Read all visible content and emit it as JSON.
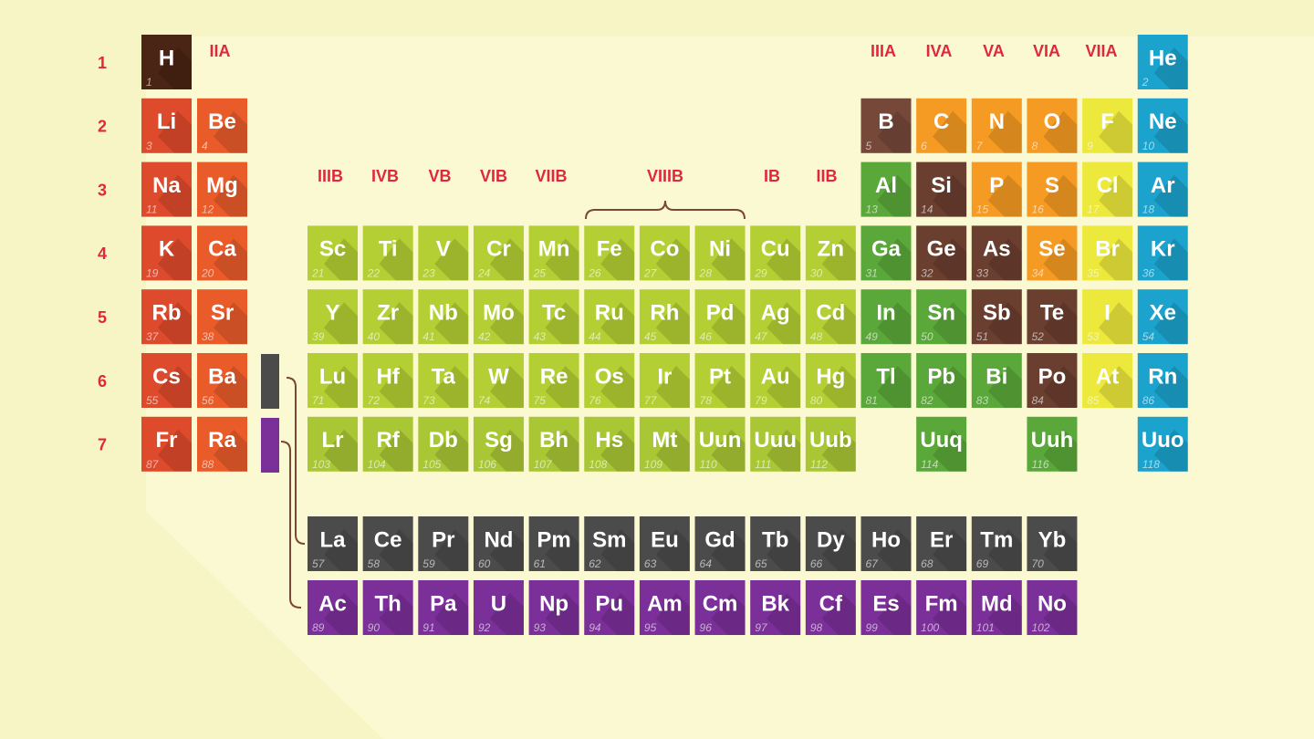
{
  "periods": [
    "1",
    "2",
    "3",
    "4",
    "5",
    "6",
    "7"
  ],
  "groups_a": [
    "IIA",
    "IIIA",
    "IVA",
    "VA",
    "VIA",
    "VIIA"
  ],
  "groups_b": [
    "IIIB",
    "IVB",
    "VB",
    "VIB",
    "VIIB",
    "VIIIB",
    "IB",
    "IIB"
  ],
  "rows": [
    [
      {
        "symbol": "H",
        "number": 1,
        "color": "#4a2414"
      },
      null,
      null,
      null,
      null,
      null,
      null,
      null,
      null,
      null,
      null,
      null,
      null,
      null,
      null,
      null,
      null,
      {
        "symbol": "He",
        "number": 2,
        "color": "#1ba3cd"
      }
    ],
    [
      {
        "symbol": "Li",
        "number": 3,
        "color": "#de4a2c"
      },
      {
        "symbol": "Be",
        "number": 4,
        "color": "#ea5b2a"
      },
      null,
      null,
      null,
      null,
      null,
      null,
      null,
      null,
      null,
      null,
      {
        "symbol": "B",
        "number": 5,
        "color": "#76483a"
      },
      {
        "symbol": "C",
        "number": 6,
        "color": "#f59a22"
      },
      {
        "symbol": "N",
        "number": 7,
        "color": "#f59a22"
      },
      {
        "symbol": "O",
        "number": 8,
        "color": "#f59a22"
      },
      {
        "symbol": "F",
        "number": 9,
        "color": "#ece83c"
      },
      {
        "symbol": "Ne",
        "number": 10,
        "color": "#1ba3cd"
      }
    ],
    [
      {
        "symbol": "Na",
        "number": 11,
        "color": "#de4a2c"
      },
      {
        "symbol": "Mg",
        "number": 12,
        "color": "#ea5b2a"
      },
      null,
      null,
      null,
      null,
      null,
      null,
      null,
      null,
      null,
      null,
      {
        "symbol": "Al",
        "number": 13,
        "color": "#5ba83a"
      },
      {
        "symbol": "Si",
        "number": 14,
        "color": "#6b3f30"
      },
      {
        "symbol": "P",
        "number": 15,
        "color": "#f59a22"
      },
      {
        "symbol": "S",
        "number": 16,
        "color": "#f59a22"
      },
      {
        "symbol": "Cl",
        "number": 17,
        "color": "#ece83c"
      },
      {
        "symbol": "Ar",
        "number": 18,
        "color": "#1ba3cd"
      }
    ],
    [
      {
        "symbol": "K",
        "number": 19,
        "color": "#de4a2c"
      },
      {
        "symbol": "Ca",
        "number": 20,
        "color": "#ea5b2a"
      },
      {
        "symbol": "Sc",
        "number": 21,
        "color": "#b3cf33"
      },
      {
        "symbol": "Ti",
        "number": 22,
        "color": "#b3cf33"
      },
      {
        "symbol": "V",
        "number": 23,
        "color": "#b3cf33"
      },
      {
        "symbol": "Cr",
        "number": 24,
        "color": "#b3cf33"
      },
      {
        "symbol": "Mn",
        "number": 25,
        "color": "#b3cf33"
      },
      {
        "symbol": "Fe",
        "number": 26,
        "color": "#b3cf33"
      },
      {
        "symbol": "Co",
        "number": 27,
        "color": "#b3cf33"
      },
      {
        "symbol": "Ni",
        "number": 28,
        "color": "#b3cf33"
      },
      {
        "symbol": "Cu",
        "number": 29,
        "color": "#b3cf33"
      },
      {
        "symbol": "Zn",
        "number": 30,
        "color": "#b3cf33"
      },
      {
        "symbol": "Ga",
        "number": 31,
        "color": "#5ba83a"
      },
      {
        "symbol": "Ge",
        "number": 32,
        "color": "#6b3f30"
      },
      {
        "symbol": "As",
        "number": 33,
        "color": "#6b3f30"
      },
      {
        "symbol": "Se",
        "number": 34,
        "color": "#f59a22"
      },
      {
        "symbol": "Br",
        "number": 35,
        "color": "#ece83c"
      },
      {
        "symbol": "Kr",
        "number": 36,
        "color": "#1ba3cd"
      }
    ],
    [
      {
        "symbol": "Rb",
        "number": 37,
        "color": "#de4a2c"
      },
      {
        "symbol": "Sr",
        "number": 38,
        "color": "#ea5b2a"
      },
      {
        "symbol": "Y",
        "number": 39,
        "color": "#b3cf33"
      },
      {
        "symbol": "Zr",
        "number": 40,
        "color": "#b3cf33"
      },
      {
        "symbol": "Nb",
        "number": 41,
        "color": "#b3cf33"
      },
      {
        "symbol": "Mo",
        "number": 42,
        "color": "#b3cf33"
      },
      {
        "symbol": "Tc",
        "number": 43,
        "color": "#b3cf33"
      },
      {
        "symbol": "Ru",
        "number": 44,
        "color": "#b3cf33"
      },
      {
        "symbol": "Rh",
        "number": 45,
        "color": "#b3cf33"
      },
      {
        "symbol": "Pd",
        "number": 46,
        "color": "#b3cf33"
      },
      {
        "symbol": "Ag",
        "number": 47,
        "color": "#b3cf33"
      },
      {
        "symbol": "Cd",
        "number": 48,
        "color": "#b3cf33"
      },
      {
        "symbol": "In",
        "number": 49,
        "color": "#5ba83a"
      },
      {
        "symbol": "Sn",
        "number": 50,
        "color": "#5ba83a"
      },
      {
        "symbol": "Sb",
        "number": 51,
        "color": "#6b3f30"
      },
      {
        "symbol": "Te",
        "number": 52,
        "color": "#6b3f30"
      },
      {
        "symbol": "I",
        "number": 53,
        "color": "#ece83c"
      },
      {
        "symbol": "Xe",
        "number": 54,
        "color": "#1ba3cd"
      }
    ],
    [
      {
        "symbol": "Cs",
        "number": 55,
        "color": "#de4a2c"
      },
      {
        "symbol": "Ba",
        "number": 56,
        "color": "#ea5b2a"
      },
      {
        "symbol": "Lu",
        "number": 71,
        "color": "#b3cf33"
      },
      {
        "symbol": "Hf",
        "number": 72,
        "color": "#b3cf33"
      },
      {
        "symbol": "Ta",
        "number": 73,
        "color": "#b3cf33"
      },
      {
        "symbol": "W",
        "number": 74,
        "color": "#b3cf33"
      },
      {
        "symbol": "Re",
        "number": 75,
        "color": "#b3cf33"
      },
      {
        "symbol": "Os",
        "number": 76,
        "color": "#b3cf33"
      },
      {
        "symbol": "Ir",
        "number": 77,
        "color": "#b3cf33"
      },
      {
        "symbol": "Pt",
        "number": 78,
        "color": "#b3cf33"
      },
      {
        "symbol": "Au",
        "number": 79,
        "color": "#b3cf33"
      },
      {
        "symbol": "Hg",
        "number": 80,
        "color": "#b3cf33"
      },
      {
        "symbol": "Tl",
        "number": 81,
        "color": "#5ba83a"
      },
      {
        "symbol": "Pb",
        "number": 82,
        "color": "#5ba83a"
      },
      {
        "symbol": "Bi",
        "number": 83,
        "color": "#5ba83a"
      },
      {
        "symbol": "Po",
        "number": 84,
        "color": "#6b3f30"
      },
      {
        "symbol": "At",
        "number": 85,
        "color": "#ece83c"
      },
      {
        "symbol": "Rn",
        "number": 86,
        "color": "#1ba3cd"
      }
    ],
    [
      {
        "symbol": "Fr",
        "number": 87,
        "color": "#de4a2c"
      },
      {
        "symbol": "Ra",
        "number": 88,
        "color": "#ea5b2a"
      },
      {
        "symbol": "Lr",
        "number": 103,
        "color": "#a9c635"
      },
      {
        "symbol": "Rf",
        "number": 104,
        "color": "#a9c635"
      },
      {
        "symbol": "Db",
        "number": 105,
        "color": "#a9c635"
      },
      {
        "symbol": "Sg",
        "number": 106,
        "color": "#a9c635"
      },
      {
        "symbol": "Bh",
        "number": 107,
        "color": "#a9c635"
      },
      {
        "symbol": "Hs",
        "number": 108,
        "color": "#a9c635"
      },
      {
        "symbol": "Mt",
        "number": 109,
        "color": "#a9c635"
      },
      {
        "symbol": "Uun",
        "number": 110,
        "color": "#a9c635"
      },
      {
        "symbol": "Uuu",
        "number": 111,
        "color": "#a9c635"
      },
      {
        "symbol": "Uub",
        "number": 112,
        "color": "#a9c635"
      },
      null,
      {
        "symbol": "Uuq",
        "number": 114,
        "color": "#5ba83a"
      },
      null,
      {
        "symbol": "Uuh",
        "number": 116,
        "color": "#5ba83a"
      },
      null,
      {
        "symbol": "Uuo",
        "number": 118,
        "color": "#1ba3cd"
      }
    ]
  ],
  "lanthanides": [
    {
      "symbol": "La",
      "number": 57
    },
    {
      "symbol": "Ce",
      "number": 58
    },
    {
      "symbol": "Pr",
      "number": 59
    },
    {
      "symbol": "Nd",
      "number": 60
    },
    {
      "symbol": "Pm",
      "number": 61
    },
    {
      "symbol": "Sm",
      "number": 62
    },
    {
      "symbol": "Eu",
      "number": 63
    },
    {
      "symbol": "Gd",
      "number": 64
    },
    {
      "symbol": "Tb",
      "number": 65
    },
    {
      "symbol": "Dy",
      "number": 66
    },
    {
      "symbol": "Ho",
      "number": 67
    },
    {
      "symbol": "Er",
      "number": 68
    },
    {
      "symbol": "Tm",
      "number": 69
    },
    {
      "symbol": "Yb",
      "number": 70
    }
  ],
  "lanthanides_color": "#4b4b4b",
  "actinides": [
    {
      "symbol": "Ac",
      "number": 89
    },
    {
      "symbol": "Th",
      "number": 90
    },
    {
      "symbol": "Pa",
      "number": 91
    },
    {
      "symbol": "U",
      "number": 92
    },
    {
      "symbol": "Np",
      "number": 93
    },
    {
      "symbol": "Pu",
      "number": 94
    },
    {
      "symbol": "Am",
      "number": 95
    },
    {
      "symbol": "Cm",
      "number": 96
    },
    {
      "symbol": "Bk",
      "number": 97
    },
    {
      "symbol": "Cf",
      "number": 98
    },
    {
      "symbol": "Es",
      "number": 99
    },
    {
      "symbol": "Fm",
      "number": 100
    },
    {
      "symbol": "Md",
      "number": 101
    },
    {
      "symbol": "No",
      "number": 102
    }
  ],
  "actinides_color": "#7b2f99"
}
